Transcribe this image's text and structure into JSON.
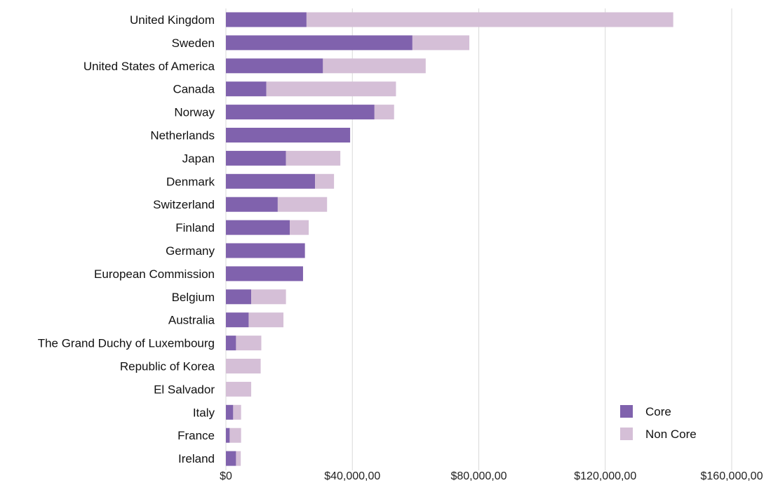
{
  "chart_data": {
    "type": "bar",
    "orientation": "horizontal",
    "stacked": true,
    "categories": [
      "United Kingdom",
      "Sweden",
      "United States of America",
      "Canada",
      "Norway",
      "Netherlands",
      "Japan",
      "Denmark",
      "Switzerland",
      "Finland",
      "Germany",
      "European Commission",
      "Belgium",
      "Australia",
      "The Grand Duchy of Luxembourg",
      "Republic of Korea",
      "El Salvador",
      "Italy",
      "France",
      "Ireland"
    ],
    "series": [
      {
        "name": "Core",
        "color": "#8062ad",
        "values": [
          25500000,
          59000000,
          30700000,
          12800000,
          47000000,
          39300000,
          19000000,
          28200000,
          16400000,
          20200000,
          25000000,
          24400000,
          8000000,
          7200000,
          3200000,
          0,
          0,
          2300000,
          1200000,
          3200000
        ]
      },
      {
        "name": "Non Core",
        "color": "#d5bfd7",
        "values": [
          116000000,
          18000000,
          32500000,
          41000000,
          6200000,
          0,
          17200000,
          6000000,
          15600000,
          6000000,
          0,
          0,
          11000000,
          11000000,
          8000000,
          11000000,
          8000000,
          2500000,
          3600000,
          1500000
        ]
      }
    ],
    "x_tick_labels": [
      "$0",
      "$40,000,00",
      "$80,000,00",
      "$120,000,00",
      "$160,000,00"
    ],
    "x_ticks": [
      0,
      40000000,
      80000000,
      120000000,
      160000000
    ],
    "xlim": [
      0,
      160000000
    ],
    "grid": true,
    "legend_position": "bottom-right",
    "title": "",
    "xlabel": "",
    "ylabel": ""
  }
}
